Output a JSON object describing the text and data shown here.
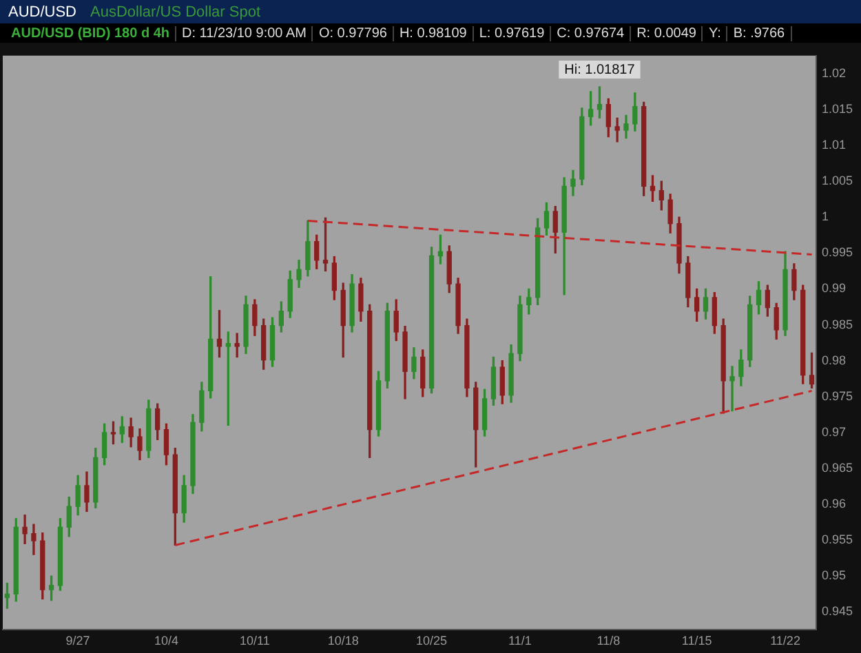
{
  "chart_data": {
    "type": "candlestick",
    "title": "AUD/USD",
    "subtitle": "AusDollar/US Dollar Spot",
    "annotations": [
      "AUD/USD (BID) 180 d 4h",
      "D: 11/23/10 9:00 AM",
      "O: 0.97796",
      "H: 0.98109",
      "L: 0.97619",
      "C: 0.97674",
      "R: 0.0049",
      "Y:",
      "B: .9766",
      {
        "text": "Hi: 1.01817",
        "y": 1.01817
      }
    ],
    "categories": [
      null,
      null,
      null,
      null,
      null,
      null,
      null,
      null,
      "9/27",
      null,
      null,
      null,
      null,
      null,
      null,
      null,
      null,
      null,
      "10/4",
      null,
      null,
      null,
      null,
      null,
      null,
      null,
      null,
      null,
      "10/11",
      null,
      null,
      null,
      null,
      null,
      null,
      null,
      null,
      null,
      "10/18",
      null,
      null,
      null,
      null,
      null,
      null,
      null,
      null,
      null,
      "10/25",
      null,
      null,
      null,
      null,
      null,
      null,
      null,
      null,
      null,
      "11/1",
      null,
      null,
      null,
      null,
      null,
      null,
      null,
      null,
      null,
      "11/8",
      null,
      null,
      null,
      null,
      null,
      null,
      null,
      null,
      null,
      "11/15",
      null,
      null,
      null,
      null,
      null,
      null,
      null,
      null,
      null,
      "11/22",
      null,
      null,
      null
    ],
    "ohlc": [
      [
        0.947,
        0.949,
        0.9455,
        0.9475
      ],
      [
        0.9475,
        0.958,
        0.9465,
        0.9568
      ],
      [
        0.9568,
        0.9585,
        0.9545,
        0.9559
      ],
      [
        0.9559,
        0.9572,
        0.953,
        0.9549
      ],
      [
        0.9549,
        0.956,
        0.9468,
        0.9481
      ],
      [
        0.9481,
        0.95,
        0.9466,
        0.9487
      ],
      [
        0.9487,
        0.958,
        0.948,
        0.9568
      ],
      [
        0.9568,
        0.961,
        0.9555,
        0.9597
      ],
      [
        0.9597,
        0.964,
        0.9585,
        0.9626
      ],
      [
        0.9626,
        0.9645,
        0.959,
        0.9603
      ],
      [
        0.9603,
        0.9678,
        0.9595,
        0.9665
      ],
      [
        0.9665,
        0.9712,
        0.9655,
        0.97
      ],
      [
        0.97,
        0.9715,
        0.9684,
        0.9698
      ],
      [
        0.9698,
        0.9722,
        0.9686,
        0.9708
      ],
      [
        0.9708,
        0.972,
        0.968,
        0.9694
      ],
      [
        0.9694,
        0.9705,
        0.9662,
        0.9675
      ],
      [
        0.9675,
        0.9745,
        0.9665,
        0.9733
      ],
      [
        0.9733,
        0.974,
        0.969,
        0.9704
      ],
      [
        0.9704,
        0.9712,
        0.9655,
        0.9669
      ],
      [
        0.9669,
        0.9678,
        0.9543,
        0.9588
      ],
      [
        0.9588,
        0.964,
        0.9575,
        0.9626
      ],
      [
        0.9626,
        0.9725,
        0.9615,
        0.9714
      ],
      [
        0.9714,
        0.977,
        0.9702,
        0.9758
      ],
      [
        0.9758,
        0.9917,
        0.9748,
        0.983
      ],
      [
        0.983,
        0.987,
        0.9805,
        0.982
      ],
      [
        0.982,
        0.984,
        0.971,
        0.9824
      ],
      [
        0.9824,
        0.9838,
        0.9805,
        0.982
      ],
      [
        0.982,
        0.989,
        0.981,
        0.9878
      ],
      [
        0.9878,
        0.9885,
        0.9835,
        0.9849
      ],
      [
        0.9849,
        0.9858,
        0.9788,
        0.9801
      ],
      [
        0.9801,
        0.986,
        0.9792,
        0.9849
      ],
      [
        0.9849,
        0.9882,
        0.984,
        0.9869
      ],
      [
        0.9869,
        0.9925,
        0.986,
        0.9913
      ],
      [
        0.9913,
        0.994,
        0.9902,
        0.9927
      ],
      [
        0.9927,
        0.9995,
        0.9918,
        0.9966
      ],
      [
        0.9966,
        0.9975,
        0.9928,
        0.994
      ],
      [
        0.994,
        0.9999,
        0.9925,
        0.9936
      ],
      [
        0.9936,
        0.9945,
        0.9885,
        0.9898
      ],
      [
        0.9898,
        0.9908,
        0.9805,
        0.9849
      ],
      [
        0.9849,
        0.992,
        0.984,
        0.9907
      ],
      [
        0.9907,
        0.9915,
        0.9855,
        0.9869
      ],
      [
        0.9869,
        0.9878,
        0.9665,
        0.9704
      ],
      [
        0.9704,
        0.9785,
        0.9695,
        0.9772
      ],
      [
        0.9772,
        0.988,
        0.9762,
        0.9869
      ],
      [
        0.9869,
        0.9885,
        0.9828,
        0.984
      ],
      [
        0.984,
        0.9848,
        0.9747,
        0.9785
      ],
      [
        0.9785,
        0.9818,
        0.9775,
        0.9805
      ],
      [
        0.9805,
        0.9815,
        0.975,
        0.9762
      ],
      [
        0.9762,
        0.9958,
        0.9755,
        0.9946
      ],
      [
        0.9946,
        0.9975,
        0.9935,
        0.9952
      ],
      [
        0.9952,
        0.996,
        0.9895,
        0.9907
      ],
      [
        0.9907,
        0.9915,
        0.9838,
        0.9849
      ],
      [
        0.9849,
        0.9858,
        0.975,
        0.9762
      ],
      [
        0.9762,
        0.977,
        0.9652,
        0.9704
      ],
      [
        0.9704,
        0.976,
        0.9695,
        0.9747
      ],
      [
        0.9747,
        0.9805,
        0.9738,
        0.9791
      ],
      [
        0.9791,
        0.98,
        0.974,
        0.9752
      ],
      [
        0.9752,
        0.9822,
        0.9742,
        0.981
      ],
      [
        0.981,
        0.989,
        0.98,
        0.9878
      ],
      [
        0.9878,
        0.99,
        0.9865,
        0.9888
      ],
      [
        0.9888,
        0.9998,
        0.9878,
        0.9985
      ],
      [
        0.9985,
        1.002,
        0.9975,
        1.0008
      ],
      [
        1.0008,
        1.0015,
        0.995,
        0.9979
      ],
      [
        0.9979,
        1.0055,
        0.9892,
        1.0043
      ],
      [
        1.0043,
        1.0065,
        1.003,
        1.0053
      ],
      [
        1.0053,
        1.0152,
        1.0045,
        1.014
      ],
      [
        1.014,
        1.0175,
        1.0128,
        1.015
      ],
      [
        1.015,
        1.01817,
        1.0138,
        1.0157
      ],
      [
        1.0157,
        1.0165,
        1.0112,
        1.0126
      ],
      [
        1.0126,
        1.0138,
        1.0105,
        1.0121
      ],
      [
        1.0121,
        1.0142,
        1.011,
        1.013
      ],
      [
        1.013,
        1.0173,
        1.012,
        1.0154
      ],
      [
        1.0154,
        1.016,
        1.003,
        1.0043
      ],
      [
        1.0043,
        1.0058,
        1.0022,
        1.0037
      ],
      [
        1.0037,
        1.005,
        1.001,
        1.0024
      ],
      [
        1.0024,
        1.0032,
        0.9978,
        0.9991
      ],
      [
        0.9991,
        1.0,
        0.9922,
        0.9936
      ],
      [
        0.9936,
        0.9945,
        0.9875,
        0.9888
      ],
      [
        0.9888,
        0.99,
        0.9855,
        0.9869
      ],
      [
        0.9869,
        0.99,
        0.9858,
        0.9888
      ],
      [
        0.9888,
        0.9895,
        0.9838,
        0.9849
      ],
      [
        0.9849,
        0.9858,
        0.9727,
        0.9772
      ],
      [
        0.9772,
        0.9792,
        0.973,
        0.9778
      ],
      [
        0.9778,
        0.9815,
        0.9765,
        0.9801
      ],
      [
        0.9801,
        0.989,
        0.9792,
        0.9878
      ],
      [
        0.9878,
        0.991,
        0.9865,
        0.9898
      ],
      [
        0.9898,
        0.9905,
        0.9862,
        0.9874
      ],
      [
        0.9874,
        0.988,
        0.983,
        0.9843
      ],
      [
        0.9843,
        0.9952,
        0.9835,
        0.9927
      ],
      [
        0.9927,
        0.9935,
        0.9885,
        0.9898
      ],
      [
        0.9898,
        0.9905,
        0.9768,
        0.978
      ],
      [
        0.97796,
        0.98109,
        0.97619,
        0.97674
      ]
    ],
    "series": [
      {
        "type": "line",
        "color": "#c62828",
        "line_style": "dashed",
        "values": [
          null,
          null,
          null,
          null,
          null,
          null,
          null,
          null,
          null,
          null,
          null,
          null,
          null,
          null,
          null,
          null,
          null,
          null,
          null,
          null,
          null,
          null,
          null,
          null,
          null,
          null,
          null,
          null,
          null,
          null,
          null,
          null,
          null,
          null,
          0.9995,
          null,
          null,
          null,
          null,
          null,
          null,
          null,
          null,
          null,
          null,
          null,
          null,
          null,
          null,
          null,
          null,
          null,
          null,
          null,
          null,
          null,
          null,
          null,
          null,
          null,
          null,
          null,
          null,
          null,
          null,
          null,
          null,
          null,
          null,
          null,
          null,
          null,
          null,
          null,
          null,
          null,
          null,
          null,
          null,
          null,
          null,
          null,
          null,
          null,
          null,
          null,
          null,
          null,
          null,
          null,
          null,
          0.9948
        ]
      },
      {
        "type": "line",
        "color": "#c62828",
        "line_style": "dashed",
        "values": [
          null,
          null,
          null,
          null,
          null,
          null,
          null,
          null,
          null,
          null,
          null,
          null,
          null,
          null,
          null,
          null,
          null,
          null,
          null,
          0.9543,
          null,
          null,
          null,
          null,
          null,
          null,
          null,
          null,
          null,
          null,
          null,
          null,
          null,
          null,
          null,
          null,
          null,
          null,
          null,
          null,
          null,
          null,
          null,
          null,
          null,
          null,
          null,
          null,
          null,
          null,
          null,
          null,
          null,
          null,
          null,
          null,
          null,
          null,
          null,
          null,
          null,
          null,
          null,
          null,
          null,
          null,
          null,
          null,
          null,
          null,
          null,
          null,
          null,
          null,
          null,
          null,
          null,
          null,
          null,
          null,
          null,
          null,
          null,
          null,
          null,
          null,
          null,
          null,
          null,
          null,
          null,
          0.9758
        ]
      }
    ],
    "ylim": [
      0.9425,
      1.0225
    ],
    "yticks": [
      0.945,
      0.95,
      0.955,
      0.96,
      0.965,
      0.97,
      0.975,
      0.98,
      0.985,
      0.99,
      0.995,
      1,
      1.005,
      1.01,
      1.015,
      1.02
    ]
  }
}
